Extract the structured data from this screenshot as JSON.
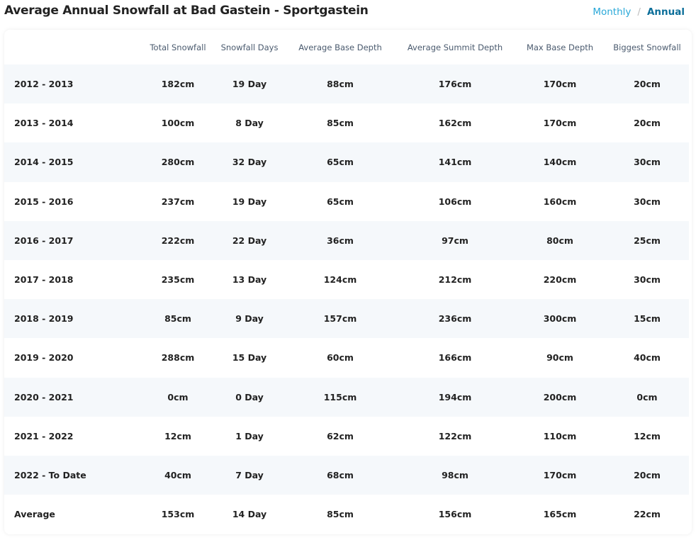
{
  "title": "Average Annual Snowfall at Bad Gastein - Sportgastein",
  "toggle": {
    "monthly": "Monthly",
    "separator": "/",
    "annual": "Annual",
    "active": "Annual"
  },
  "colors": {
    "monthly_link": "#29a8d8",
    "annual_active": "#0b6e99",
    "stripe": "#f5f8fb"
  },
  "table": {
    "headers": [
      "",
      "Total Snowfall",
      "Snowfall Days",
      "Average Base Depth",
      "Average Summit Depth",
      "Max Base Depth",
      "Biggest Snowfall"
    ],
    "rows": [
      [
        "2012 - 2013",
        "182cm",
        "19 Day",
        "88cm",
        "176cm",
        "170cm",
        "20cm"
      ],
      [
        "2013 - 2014",
        "100cm",
        "8 Day",
        "85cm",
        "162cm",
        "170cm",
        "20cm"
      ],
      [
        "2014 - 2015",
        "280cm",
        "32 Day",
        "65cm",
        "141cm",
        "140cm",
        "30cm"
      ],
      [
        "2015 - 2016",
        "237cm",
        "19 Day",
        "65cm",
        "106cm",
        "160cm",
        "30cm"
      ],
      [
        "2016 - 2017",
        "222cm",
        "22 Day",
        "36cm",
        "97cm",
        "80cm",
        "25cm"
      ],
      [
        "2017 - 2018",
        "235cm",
        "13 Day",
        "124cm",
        "212cm",
        "220cm",
        "30cm"
      ],
      [
        "2018 - 2019",
        "85cm",
        "9 Day",
        "157cm",
        "236cm",
        "300cm",
        "15cm"
      ],
      [
        "2019 - 2020",
        "288cm",
        "15 Day",
        "60cm",
        "166cm",
        "90cm",
        "40cm"
      ],
      [
        "2020 - 2021",
        "0cm",
        "0 Day",
        "115cm",
        "194cm",
        "200cm",
        "0cm"
      ],
      [
        "2021 - 2022",
        "12cm",
        "1 Day",
        "62cm",
        "122cm",
        "110cm",
        "12cm"
      ],
      [
        "2022 - To Date",
        "40cm",
        "7 Day",
        "68cm",
        "98cm",
        "170cm",
        "20cm"
      ],
      [
        "Average",
        "153cm",
        "14 Day",
        "85cm",
        "156cm",
        "165cm",
        "22cm"
      ]
    ]
  }
}
